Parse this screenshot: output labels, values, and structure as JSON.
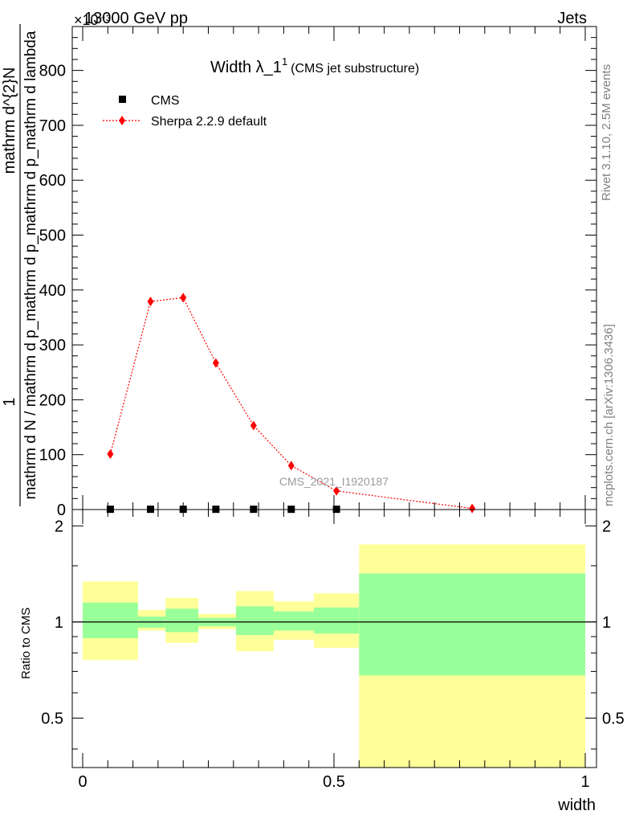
{
  "header": {
    "left": "13000 GeV pp",
    "right": "Jets",
    "exponent": "×10⁻³",
    "side_top": "Rivet 3.1.10,  2.5M events",
    "side_bottom": "mcplots.cern.ch [arXiv:1306.3436]",
    "watermark": "CMS_2021_I1920187"
  },
  "colors": {
    "sherpa": "#ff0000",
    "cms": "#000000",
    "band_inner": "#99ff99",
    "band_outer": "#ffff99"
  },
  "chart_data": [
    {
      "type": "line",
      "title": "Width λ_1",
      "title_sup": "1",
      "subtitle": "(CMS jet substructure)",
      "xlabel": "width",
      "ylabel_numerator": "1",
      "ylabel_denominator": "mathrm d N / mathrm d p_mathrm d p_mathrm d p_mathrm d lambda",
      "ylabel_right": "mathrm d^{2}N",
      "xlim": [
        0,
        1
      ],
      "ylim": [
        0,
        880
      ],
      "y_ticks": [
        0,
        100,
        200,
        300,
        400,
        500,
        600,
        700,
        800
      ],
      "x": [
        0.055,
        0.135,
        0.2,
        0.265,
        0.34,
        0.415,
        0.505,
        0.775
      ],
      "series": [
        {
          "name": "CMS",
          "marker": "square",
          "values": [
            0.5,
            0.5,
            0.5,
            0.5,
            0.5,
            0.5,
            0.5,
            0.5
          ]
        },
        {
          "name": "Sherpa 2.2.9 default",
          "marker": "diamond",
          "line": "dotted",
          "values": [
            101,
            379,
            386,
            267,
            153,
            80,
            34,
            2
          ]
        }
      ],
      "legend_position": "top-left"
    },
    {
      "type": "area",
      "ylabel": "Ratio to CMS",
      "xlim": [
        0,
        1
      ],
      "ylim": [
        0.35,
        2.25
      ],
      "y_scale": "log",
      "y_ticks": [
        0.5,
        1,
        2
      ],
      "x_ticks": [
        0,
        0.5,
        1
      ],
      "reference": 1,
      "bins": [
        {
          "x0": 0.0,
          "x1": 0.11,
          "inner": [
            0.89,
            1.15
          ],
          "outer": [
            0.76,
            1.34
          ]
        },
        {
          "x0": 0.11,
          "x1": 0.165,
          "inner": [
            0.96,
            1.04
          ],
          "outer": [
            0.94,
            1.09
          ]
        },
        {
          "x0": 0.165,
          "x1": 0.23,
          "inner": [
            0.93,
            1.1
          ],
          "outer": [
            0.86,
            1.19
          ]
        },
        {
          "x0": 0.23,
          "x1": 0.305,
          "inner": [
            0.97,
            1.03
          ],
          "outer": [
            0.95,
            1.06
          ]
        },
        {
          "x0": 0.305,
          "x1": 0.38,
          "inner": [
            0.91,
            1.12
          ],
          "outer": [
            0.81,
            1.25
          ]
        },
        {
          "x0": 0.38,
          "x1": 0.46,
          "inner": [
            0.94,
            1.08
          ],
          "outer": [
            0.88,
            1.16
          ]
        },
        {
          "x0": 0.46,
          "x1": 0.55,
          "inner": [
            0.92,
            1.11
          ],
          "outer": [
            0.83,
            1.23
          ]
        },
        {
          "x0": 0.55,
          "x1": 1.0,
          "inner": [
            0.68,
            1.42
          ],
          "outer": [
            0.35,
            1.75
          ]
        }
      ]
    }
  ]
}
